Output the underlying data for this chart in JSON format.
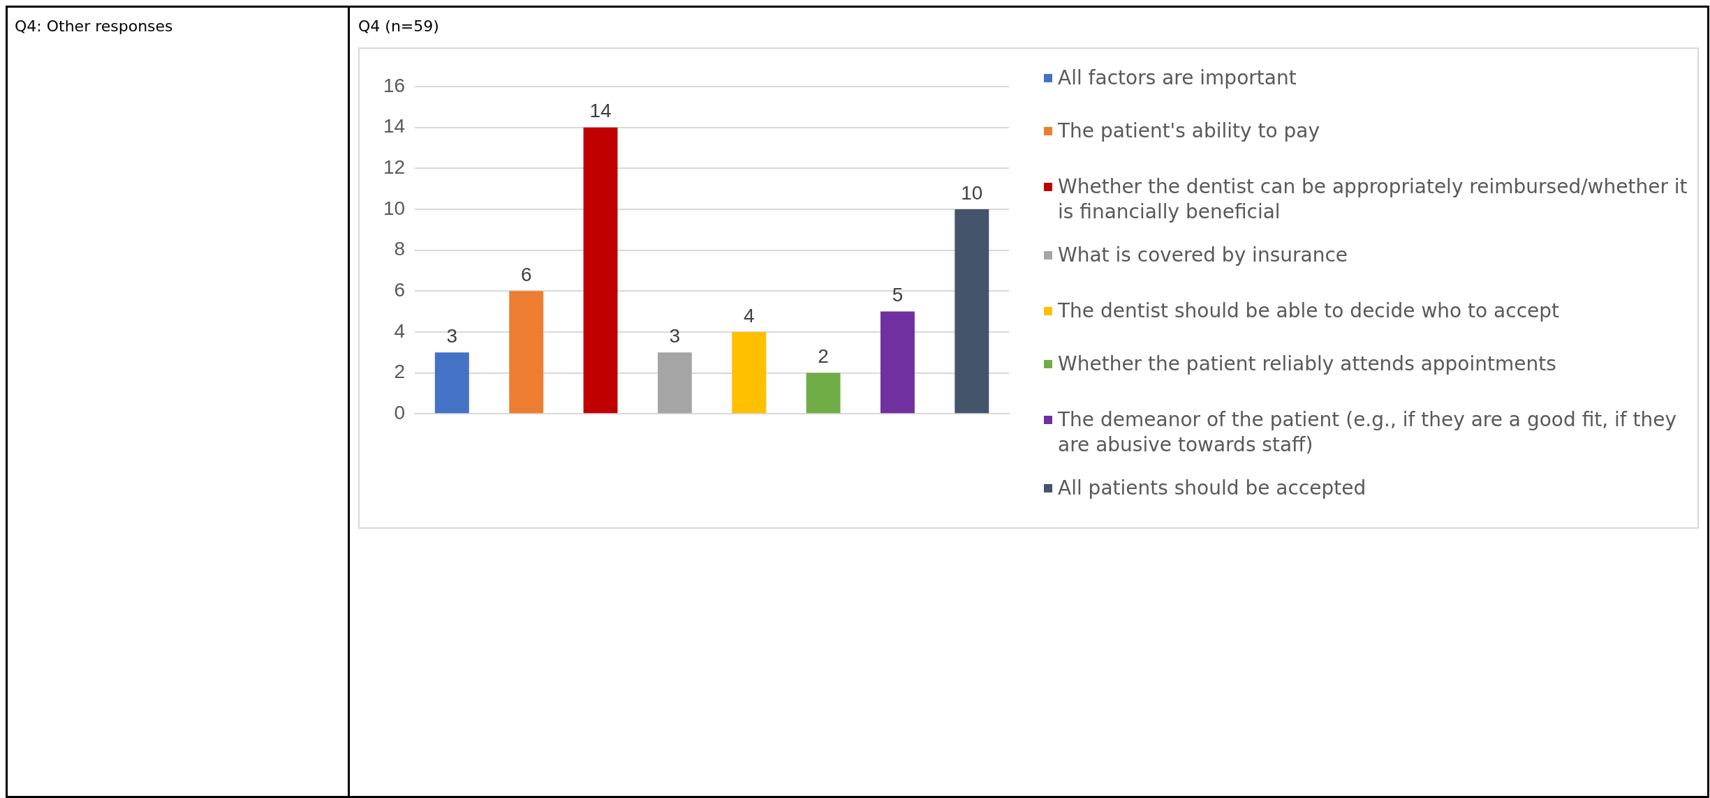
{
  "chart_data": {
    "type": "bar",
    "title": "Q4 (n=59)",
    "annotations": [
      "Q4: Other responses"
    ],
    "categories": [
      null
    ],
    "series": [
      {
        "name": "All factors are important",
        "color": "#4472c4",
        "values": [
          3
        ]
      },
      {
        "name": "The patient's ability to pay",
        "color": "#ed7d31",
        "values": [
          6
        ]
      },
      {
        "name": "Whether the dentist can be appropriately reimbursed/whether it is financially beneficial",
        "color": "#c00000",
        "values": [
          14
        ]
      },
      {
        "name": "What is covered by insurance",
        "color": "#a5a5a5",
        "values": [
          3
        ]
      },
      {
        "name": "The dentist should be able to decide who to accept",
        "color": "#ffc000",
        "values": [
          4
        ]
      },
      {
        "name": "Whether the patient reliably attends appointments",
        "color": "#70ad47",
        "values": [
          2
        ]
      },
      {
        "name": "The demeanor of the patient (e.g., if they are a good fit, if they are abusive towards staff)",
        "color": "#7030a0",
        "values": [
          5
        ]
      },
      {
        "name": "All patients should be accepted",
        "color": "#44546a",
        "values": [
          10
        ]
      }
    ],
    "ylim": [
      0,
      16
    ],
    "yticks": [
      0,
      2,
      4,
      6,
      8,
      10,
      12,
      14,
      16
    ],
    "grid": "y",
    "legend": "right",
    "data_labels": true
  }
}
